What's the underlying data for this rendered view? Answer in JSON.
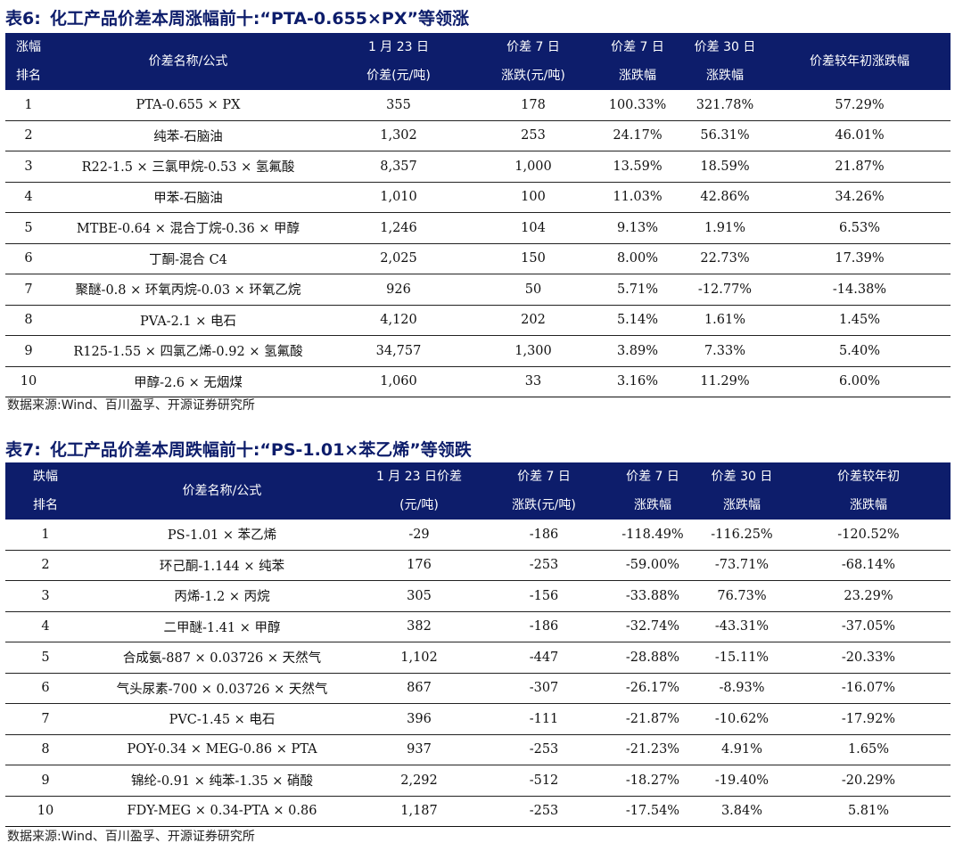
{
  "table6": {
    "title_num": "表6:",
    "title_text": "化工产品价差本周涨幅前十:“PTA-0.655×PX”等领涨",
    "headers": [
      {
        "l1": "涨幅",
        "l2": "排名"
      },
      {
        "l1": "",
        "l2": "价差名称/公式"
      },
      {
        "l1": "1 月 23 日",
        "l2": "价差(元/吨)"
      },
      {
        "l1": "价差 7 日",
        "l2": "涨跌(元/吨)"
      },
      {
        "l1": "价差 7 日",
        "l2": "涨跌幅"
      },
      {
        "l1": "价差 30 日",
        "l2": "涨跌幅"
      },
      {
        "l1": "",
        "l2": "价差较年初涨跌幅"
      }
    ],
    "rows": [
      [
        "1",
        "PTA-0.655 × PX",
        "355",
        "178",
        "100.33%",
        "321.78%",
        "57.29%"
      ],
      [
        "2",
        "纯苯-石脑油",
        "1,302",
        "253",
        "24.17%",
        "56.31%",
        "46.01%"
      ],
      [
        "3",
        "R22-1.5 × 三氯甲烷-0.53 × 氢氟酸",
        "8,357",
        "1,000",
        "13.59%",
        "18.59%",
        "21.87%"
      ],
      [
        "4",
        "甲苯-石脑油",
        "1,010",
        "100",
        "11.03%",
        "42.86%",
        "34.26%"
      ],
      [
        "5",
        "MTBE-0.64 × 混合丁烷-0.36 × 甲醇",
        "1,246",
        "104",
        "9.13%",
        "1.91%",
        "6.53%"
      ],
      [
        "6",
        "丁酮-混合 C4",
        "2,025",
        "150",
        "8.00%",
        "22.73%",
        "17.39%"
      ],
      [
        "7",
        "聚醚-0.8 × 环氧丙烷-0.03 × 环氧乙烷",
        "926",
        "50",
        "5.71%",
        "-12.77%",
        "-14.38%"
      ],
      [
        "8",
        "PVA-2.1 × 电石",
        "4,120",
        "202",
        "5.14%",
        "1.61%",
        "1.45%"
      ],
      [
        "9",
        "R125-1.55 × 四氯乙烯-0.92 × 氢氟酸",
        "34,757",
        "1,300",
        "3.89%",
        "7.33%",
        "5.40%"
      ],
      [
        "10",
        "甲醇-2.6 × 无烟煤",
        "1,060",
        "33",
        "3.16%",
        "11.29%",
        "6.00%"
      ]
    ],
    "source": "数据来源:Wind、百川盈孚、开源证券研究所"
  },
  "table7": {
    "title_num": "表7:",
    "title_text": "化工产品价差本周跌幅前十:“PS-1.01×苯乙烯”等领跌",
    "headers": [
      {
        "l1": "跌幅",
        "l2": "排名"
      },
      {
        "l1": "",
        "l2": "价差名称/公式"
      },
      {
        "l1": "1 月 23 日价差",
        "l2": "(元/吨)"
      },
      {
        "l1": "价差 7 日",
        "l2": "涨跌(元/吨)"
      },
      {
        "l1": "价差 7 日",
        "l2": "涨跌幅"
      },
      {
        "l1": "价差 30 日",
        "l2": "涨跌幅"
      },
      {
        "l1": "价差较年初",
        "l2": "涨跌幅"
      }
    ],
    "rows": [
      [
        "1",
        "PS-1.01 × 苯乙烯",
        "-29",
        "-186",
        "-118.49%",
        "-116.25%",
        "-120.52%"
      ],
      [
        "2",
        "环己酮-1.144 × 纯苯",
        "176",
        "-253",
        "-59.00%",
        "-73.71%",
        "-68.14%"
      ],
      [
        "3",
        "丙烯-1.2 × 丙烷",
        "305",
        "-156",
        "-33.88%",
        "76.73%",
        "23.29%"
      ],
      [
        "4",
        "二甲醚-1.41 × 甲醇",
        "382",
        "-186",
        "-32.74%",
        "-43.31%",
        "-37.05%"
      ],
      [
        "5",
        "合成氨-887 × 0.03726 × 天然气",
        "1,102",
        "-447",
        "-28.88%",
        "-15.11%",
        "-20.33%"
      ],
      [
        "6",
        "气头尿素-700 × 0.03726 × 天然气",
        "867",
        "-307",
        "-26.17%",
        "-8.93%",
        "-16.07%"
      ],
      [
        "7",
        "PVC-1.45 × 电石",
        "396",
        "-111",
        "-21.87%",
        "-10.62%",
        "-17.92%"
      ],
      [
        "8",
        "POY-0.34 × MEG-0.86 × PTA",
        "937",
        "-253",
        "-21.23%",
        "4.91%",
        "1.65%"
      ],
      [
        "9",
        "锦纶-0.91 × 纯苯-1.35 × 硝酸",
        "2,292",
        "-512",
        "-18.27%",
        "-19.40%",
        "-20.29%"
      ],
      [
        "10",
        "FDY-MEG × 0.34-PTA × 0.86",
        "1,187",
        "-253",
        "-17.54%",
        "3.84%",
        "5.81%"
      ]
    ],
    "source": "数据来源:Wind、百川盈孚、开源证券研究所"
  },
  "colors": {
    "header_bg": "#0d1d6b",
    "title": "#0d1d6b"
  }
}
